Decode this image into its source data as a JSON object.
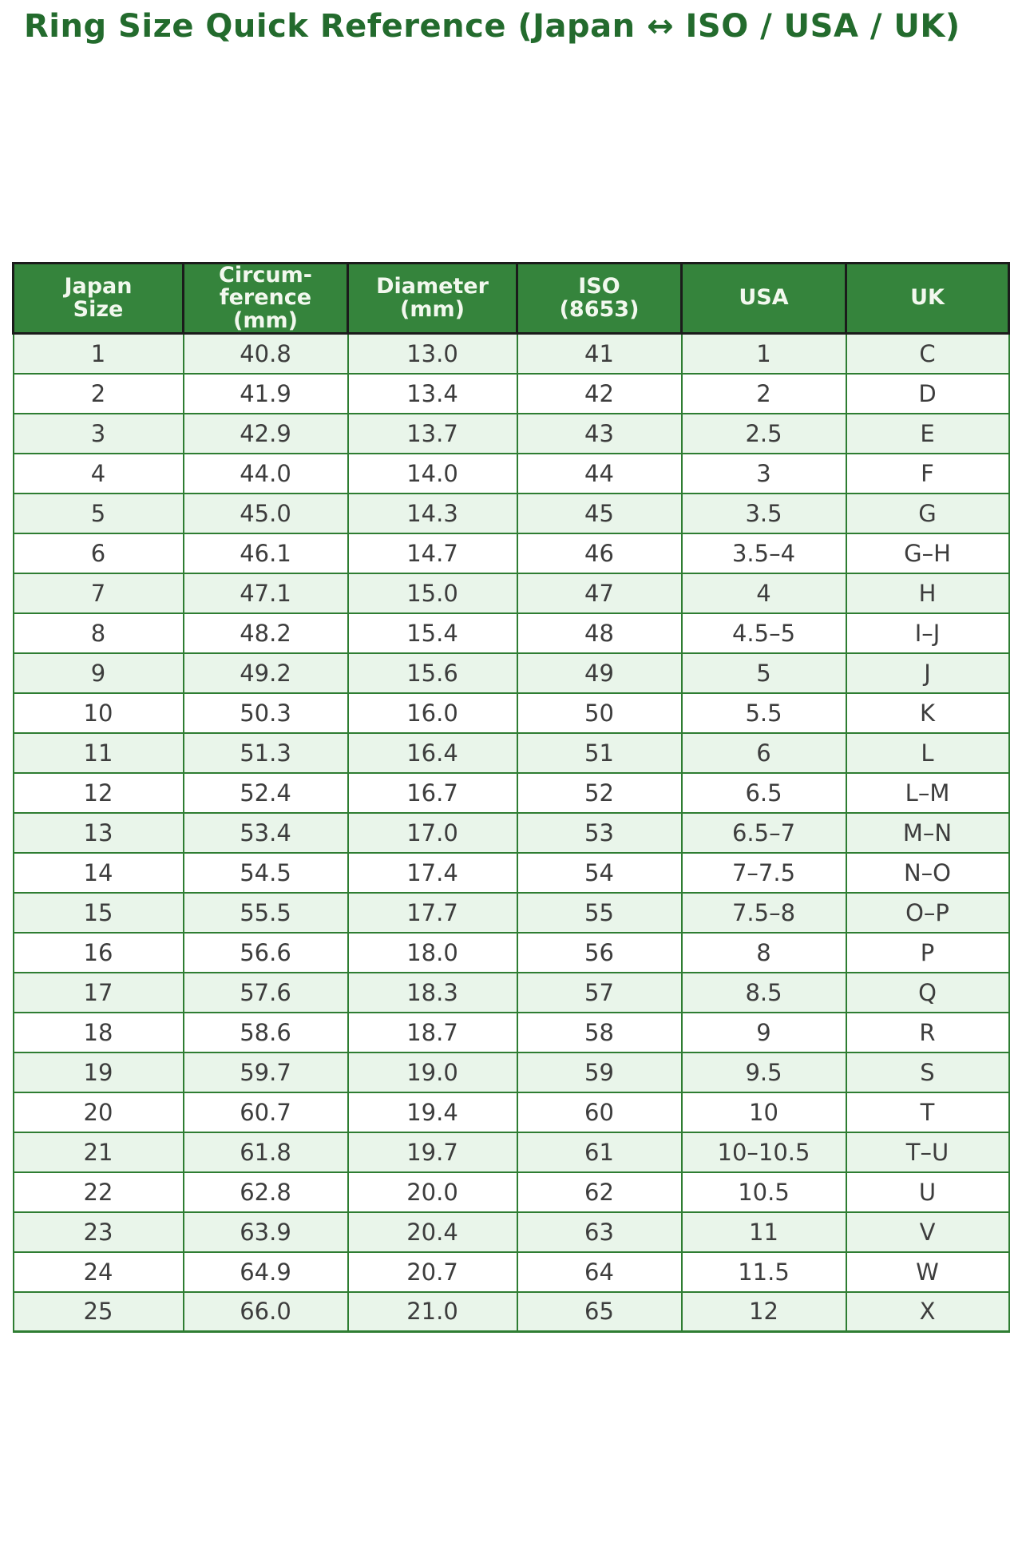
{
  "page": {
    "title": "Ring Size Quick Reference (Japan ↔ ISO / USA / UK)"
  },
  "colors": {
    "title_green": "#236b2d",
    "header_bg": "#35843c",
    "header_text": "#f2f8ee",
    "header_border": "#1b1b1b",
    "body_border": "#2e7d32",
    "row_odd_bg": "#e9f5ea",
    "row_even_bg": "#ffffff",
    "body_text": "#3d3d3d"
  },
  "chart_data": {
    "type": "table",
    "title": "Ring Size Quick Reference (Japan ↔ ISO / USA / UK)",
    "columns": [
      "Japan\nSize",
      "Circum-\nference\n(mm)",
      "Diameter\n(mm)",
      "ISO\n(8653)",
      "USA",
      "UK"
    ],
    "rows": [
      [
        "1",
        "40.8",
        "13.0",
        "41",
        "1",
        "C"
      ],
      [
        "2",
        "41.9",
        "13.4",
        "42",
        "2",
        "D"
      ],
      [
        "3",
        "42.9",
        "13.7",
        "43",
        "2.5",
        "E"
      ],
      [
        "4",
        "44.0",
        "14.0",
        "44",
        "3",
        "F"
      ],
      [
        "5",
        "45.0",
        "14.3",
        "45",
        "3.5",
        "G"
      ],
      [
        "6",
        "46.1",
        "14.7",
        "46",
        "3.5–4",
        "G–H"
      ],
      [
        "7",
        "47.1",
        "15.0",
        "47",
        "4",
        "H"
      ],
      [
        "8",
        "48.2",
        "15.4",
        "48",
        "4.5–5",
        "I–J"
      ],
      [
        "9",
        "49.2",
        "15.6",
        "49",
        "5",
        "J"
      ],
      [
        "10",
        "50.3",
        "16.0",
        "50",
        "5.5",
        "K"
      ],
      [
        "11",
        "51.3",
        "16.4",
        "51",
        "6",
        "L"
      ],
      [
        "12",
        "52.4",
        "16.7",
        "52",
        "6.5",
        "L–M"
      ],
      [
        "13",
        "53.4",
        "17.0",
        "53",
        "6.5–7",
        "M–N"
      ],
      [
        "14",
        "54.5",
        "17.4",
        "54",
        "7–7.5",
        "N–O"
      ],
      [
        "15",
        "55.5",
        "17.7",
        "55",
        "7.5–8",
        "O–P"
      ],
      [
        "16",
        "56.6",
        "18.0",
        "56",
        "8",
        "P"
      ],
      [
        "17",
        "57.6",
        "18.3",
        "57",
        "8.5",
        "Q"
      ],
      [
        "18",
        "58.6",
        "18.7",
        "58",
        "9",
        "R"
      ],
      [
        "19",
        "59.7",
        "19.0",
        "59",
        "9.5",
        "S"
      ],
      [
        "20",
        "60.7",
        "19.4",
        "60",
        "10",
        "T"
      ],
      [
        "21",
        "61.8",
        "19.7",
        "61",
        "10–10.5",
        "T–U"
      ],
      [
        "22",
        "62.8",
        "20.0",
        "62",
        "10.5",
        "U"
      ],
      [
        "23",
        "63.9",
        "20.4",
        "63",
        "11",
        "V"
      ],
      [
        "24",
        "64.9",
        "20.7",
        "64",
        "11.5",
        "W"
      ],
      [
        "25",
        "66.0",
        "21.0",
        "65",
        "12",
        "X"
      ]
    ]
  }
}
